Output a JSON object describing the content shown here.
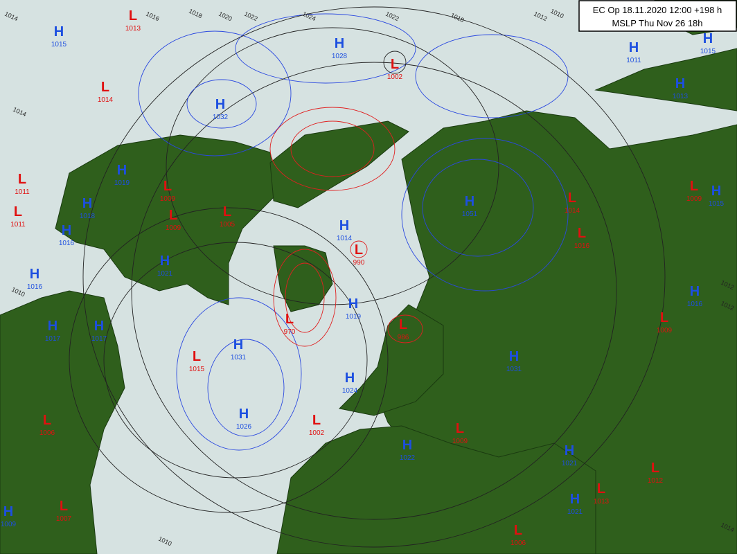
{
  "header": {
    "lines": [
      "EC Op 18.11.2020 12:00 +198 h",
      "MSLP Thu Nov 26 18h"
    ]
  },
  "colors": {
    "H": "#1d4fe0",
    "L": "#e01010"
  },
  "centers": [
    {
      "kind": "H",
      "pressure": 1015
    },
    {
      "kind": "L",
      "pressure": 1013
    },
    {
      "kind": "L",
      "pressure": 1014
    },
    {
      "kind": "H",
      "pressure": 1032
    },
    {
      "kind": "H",
      "pressure": 1028
    },
    {
      "kind": "L",
      "pressure": 1002
    },
    {
      "kind": "H",
      "pressure": 1011
    },
    {
      "kind": "H",
      "pressure": 1015
    },
    {
      "kind": "H",
      "pressure": 1013
    },
    {
      "kind": "L",
      "pressure": 1011
    },
    {
      "kind": "L",
      "pressure": 1011
    },
    {
      "kind": "H",
      "pressure": 1019
    },
    {
      "kind": "L",
      "pressure": 1009
    },
    {
      "kind": "H",
      "pressure": 1018
    },
    {
      "kind": "L",
      "pressure": 1009
    },
    {
      "kind": "L",
      "pressure": 1005
    },
    {
      "kind": "H",
      "pressure": 1016
    },
    {
      "kind": "H",
      "pressure": 1021
    },
    {
      "kind": "H",
      "pressure": 1016
    },
    {
      "kind": "H",
      "pressure": 1014
    },
    {
      "kind": "L",
      "pressure": 990
    },
    {
      "kind": "H",
      "pressure": 1019
    },
    {
      "kind": "L",
      "pressure": 970
    },
    {
      "kind": "H",
      "pressure": 1051
    },
    {
      "kind": "L",
      "pressure": 1014
    },
    {
      "kind": "L",
      "pressure": 1016
    },
    {
      "kind": "L",
      "pressure": 1009
    },
    {
      "kind": "H",
      "pressure": 1015
    },
    {
      "kind": "H",
      "pressure": 1016
    },
    {
      "kind": "L",
      "pressure": 1009
    },
    {
      "kind": "H",
      "pressure": 1017
    },
    {
      "kind": "H",
      "pressure": 1017
    },
    {
      "kind": "L",
      "pressure": 986
    },
    {
      "kind": "H",
      "pressure": 1031
    },
    {
      "kind": "L",
      "pressure": 1015
    },
    {
      "kind": "H",
      "pressure": 1024
    },
    {
      "kind": "H",
      "pressure": 1031
    },
    {
      "kind": "H",
      "pressure": 1026
    },
    {
      "kind": "L",
      "pressure": 1006
    },
    {
      "kind": "L",
      "pressure": 1002
    },
    {
      "kind": "L",
      "pressure": 1009
    },
    {
      "kind": "H",
      "pressure": 1022
    },
    {
      "kind": "H",
      "pressure": 1021
    },
    {
      "kind": "L",
      "pressure": 1012
    },
    {
      "kind": "H",
      "pressure": 1021
    },
    {
      "kind": "L",
      "pressure": 1013
    },
    {
      "kind": "H",
      "pressure": 1009
    },
    {
      "kind": "L",
      "pressure": 1007
    },
    {
      "kind": "L",
      "pressure": 1006
    }
  ],
  "isobar_labels": [
    1014,
    1016,
    1018,
    1020,
    1022,
    1024,
    1022,
    1018,
    1012,
    1010,
    1014,
    1010,
    1012,
    1012,
    1014,
    1010
  ]
}
